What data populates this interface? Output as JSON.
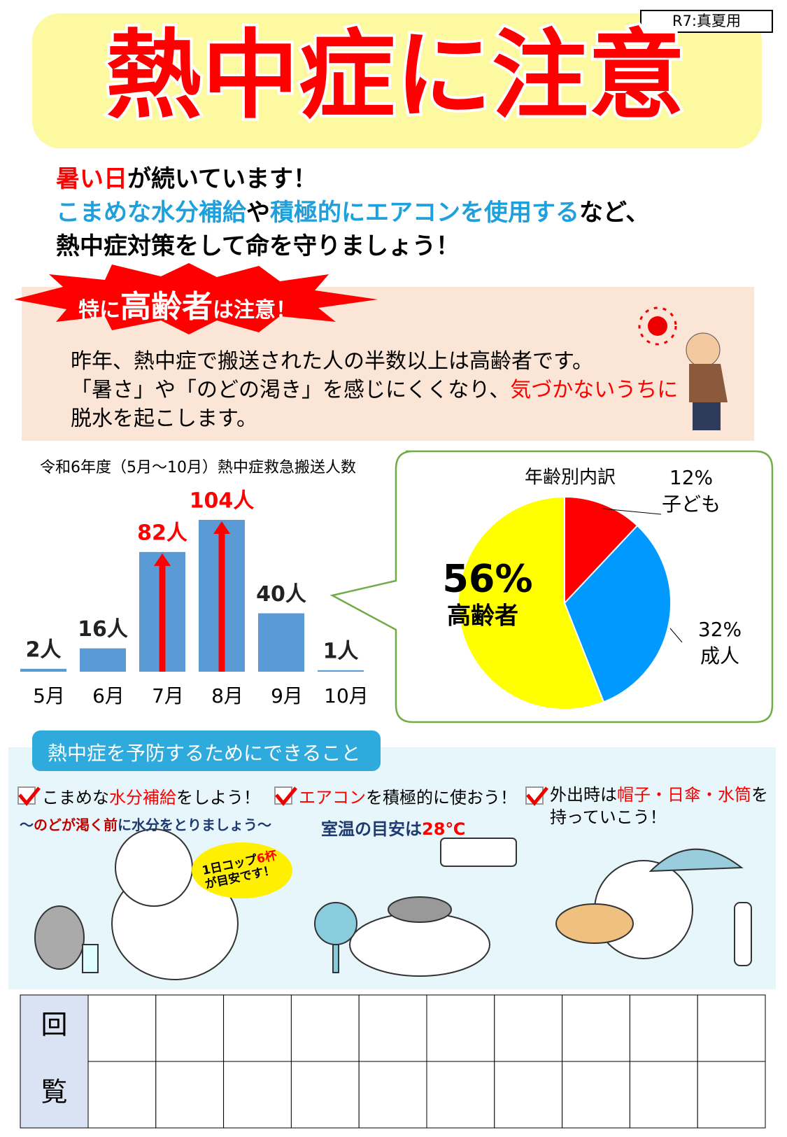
{
  "badge": "R7:真夏用",
  "title": "熱中症に注意",
  "intro": [
    [
      {
        "text": "暑い日",
        "color": "#ff0000"
      },
      {
        "text": "が続いています！",
        "color": "#000000"
      }
    ],
    [
      {
        "text": "こまめな水分補給",
        "color": "#1ea0dc"
      },
      {
        "text": "や",
        "color": "#000000"
      },
      {
        "text": "積極的にエアコンを使用する",
        "color": "#1ea0dc"
      },
      {
        "text": "など、",
        "color": "#000000"
      }
    ],
    [
      {
        "text": "熱中症対策をして命を守りましょう！",
        "color": "#000000"
      }
    ]
  ],
  "elderly": {
    "banner": [
      {
        "text": "特に",
        "emphasis": false
      },
      {
        "text": "高齢者",
        "emphasis": true
      },
      {
        "text": "は注意！",
        "emphasis": false
      }
    ],
    "lines": [
      [
        {
          "text": "昨年、熱中症で搬送された人の半数以上は高齢者です。",
          "color": "#000000"
        }
      ],
      [
        {
          "text": "「暑さ」や「のどの渇き」を感じにくくなり、",
          "color": "#000000"
        },
        {
          "text": "気づかないうちに",
          "color": "#ff0000"
        }
      ],
      [
        {
          "text": "脱水を起こします。",
          "color": "#000000"
        }
      ]
    ]
  },
  "chart_data": [
    {
      "type": "bar",
      "title": "令和6年度（5月～10月）熱中症救急搬送人数",
      "categories": [
        "5月",
        "6月",
        "7月",
        "8月",
        "9月",
        "10月"
      ],
      "values": [
        2,
        16,
        82,
        104,
        40,
        1
      ],
      "value_labels": [
        "2人",
        "16人",
        "82人",
        "104人",
        "40人",
        "1人"
      ],
      "color": "#5b9bd5",
      "highlight": [
        false,
        false,
        true,
        true,
        false,
        false
      ],
      "highlight_color": "#ff0000"
    },
    {
      "type": "pie",
      "title": "年齢別内訳",
      "categories": [
        "子ども",
        "成人",
        "高齢者"
      ],
      "values": [
        12,
        32,
        56
      ],
      "value_labels": [
        "12%",
        "32%",
        "56%"
      ],
      "colors": [
        "#ff0000",
        "#0099ff",
        "#ffff00"
      ]
    }
  ],
  "prevention": {
    "heading": "熱中症を予防するためにできること",
    "items": [
      {
        "title": [
          {
            "text": "こまめな",
            "color": "#000000"
          },
          {
            "text": "水分補給",
            "color": "#ff0000"
          },
          {
            "text": "をしよう！",
            "color": "#000000"
          }
        ],
        "sub": [
          {
            "text": "～",
            "color": "#1f3a70"
          },
          {
            "text": "のどが渇く前",
            "color": "#c00000"
          },
          {
            "text": "に水分をとりましょう～",
            "color": "#1f3a70"
          }
        ],
        "bubble": [
          {
            "text": "1日コップ",
            "color": "#000000"
          },
          {
            "text": "6杯",
            "color": "#ff0000"
          },
          {
            "text": "が目安です！",
            "color": "#000000"
          }
        ]
      },
      {
        "title": [
          {
            "text": "エアコン",
            "color": "#ff0000"
          },
          {
            "text": "を積極的に使おう！",
            "color": "#000000"
          }
        ],
        "sub": [
          {
            "text": "室温の目安は",
            "color": "#1f3a70"
          },
          {
            "text": "28℃",
            "color": "#ff0000"
          }
        ]
      },
      {
        "title": [
          {
            "text": "外出時は",
            "color": "#000000"
          },
          {
            "text": "帽子・日傘・水筒",
            "color": "#ff0000"
          },
          {
            "text": "を持っていこう！",
            "color": "#000000"
          }
        ]
      }
    ]
  },
  "circulation": [
    "回",
    "覧"
  ]
}
